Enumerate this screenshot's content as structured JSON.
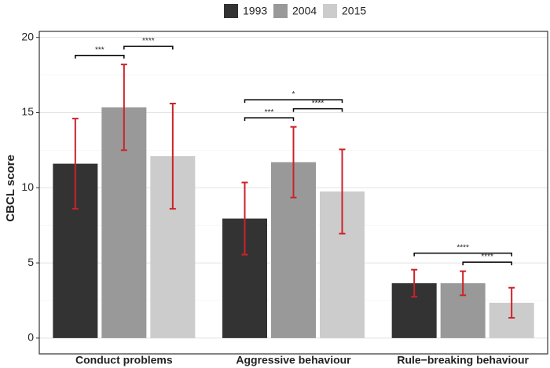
{
  "chart_data": {
    "type": "bar",
    "y_label": "CBCL score",
    "categories": [
      "Conduct problems",
      "Aggressive behaviour",
      "Rule−breaking behaviour"
    ],
    "series": [
      {
        "name": "1993",
        "color": "#333333",
        "values": [
          11.6,
          7.95,
          3.65
        ],
        "errors": [
          3.0,
          2.4,
          0.9
        ]
      },
      {
        "name": "2004",
        "color": "#999999",
        "values": [
          15.35,
          11.7,
          3.65
        ],
        "errors": [
          2.85,
          2.35,
          0.8
        ]
      },
      {
        "name": "2015",
        "color": "#cccccc",
        "values": [
          12.1,
          9.75,
          2.35
        ],
        "errors": [
          3.5,
          2.8,
          1.0
        ]
      }
    ],
    "error_color": "#cc2229",
    "annotations": [
      {
        "label": "***",
        "category": 0,
        "from": 0,
        "to": 1
      },
      {
        "label": "****",
        "category": 0,
        "from": 1,
        "to": 2
      },
      {
        "label": "***",
        "category": 1,
        "from": 0,
        "to": 1
      },
      {
        "label": "****",
        "category": 1,
        "from": 1,
        "to": 2
      },
      {
        "label": "*",
        "category": 1,
        "from": 0,
        "to": 2
      },
      {
        "label": "****",
        "category": 2,
        "from": 1,
        "to": 2
      },
      {
        "label": "****",
        "category": 2,
        "from": 0,
        "to": 2
      }
    ],
    "ylim": [
      -1.05,
      20.4
    ],
    "yticks": [
      0,
      5,
      10,
      15,
      20
    ],
    "grid": true,
    "legend": "top"
  }
}
